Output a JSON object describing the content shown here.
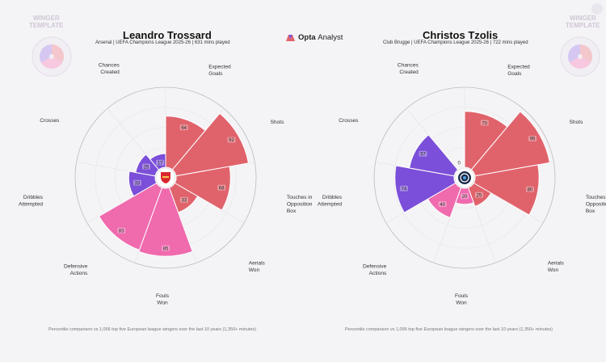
{
  "brand": {
    "name": "Opta",
    "suffix": "Analyst"
  },
  "template_label_left": [
    "WINGER",
    "TEMPLATE"
  ],
  "template_label_right": [
    "WINGER",
    "TEMPLATE"
  ],
  "chart_data": [
    {
      "type": "polar-bar",
      "title": "Leandro Trossard",
      "subtitle": "Arsenal | UEFA Champions League 2025-26 | 631 mins played",
      "footnote": "Percentile comparison vs 1,056 top five European league wingers over the last 10 years (1,350+ minutes)",
      "categories": [
        "Expected Goals",
        "Shots",
        "Touches in Opposition Box",
        "Aerials Won",
        "Fouls Won",
        "Defensive Actions",
        "Dribbles Attempted",
        "Crosses",
        "Chances Created"
      ],
      "values": [
        64,
        92,
        68,
        33,
        85,
        83,
        33,
        25,
        17
      ],
      "groups": [
        "attacking",
        "attacking",
        "attacking",
        "attacking",
        "physical",
        "physical",
        "possession",
        "possession",
        "possession"
      ],
      "colors": {
        "attacking": "#e0636c",
        "physical": "#f06aae",
        "possession": "#7b4fd9"
      },
      "rlim": [
        0,
        100
      ]
    },
    {
      "type": "polar-bar",
      "title": "Christos Tzolis",
      "subtitle": "Club Brugge | UEFA Champions League 2025-26 | 722 mins played",
      "footnote": "Percentile comparison vs 1,056 top five European league wingers over the last 10 years (1,350+ minutes)",
      "categories": [
        "Expected Goals",
        "Shots",
        "Touches in Opposition Box",
        "Aerials Won",
        "Fouls Won",
        "Defensive Actions",
        "Dribbles Attempted",
        "Crosses",
        "Chances Created"
      ],
      "values": [
        70,
        95,
        80,
        25,
        20,
        40,
        74,
        57,
        0
      ],
      "groups": [
        "attacking",
        "attacking",
        "attacking",
        "attacking",
        "physical",
        "physical",
        "possession",
        "possession",
        "possession"
      ],
      "colors": {
        "attacking": "#e0636c",
        "physical": "#f06aae",
        "possession": "#7b4fd9"
      },
      "rlim": [
        0,
        100
      ]
    }
  ]
}
